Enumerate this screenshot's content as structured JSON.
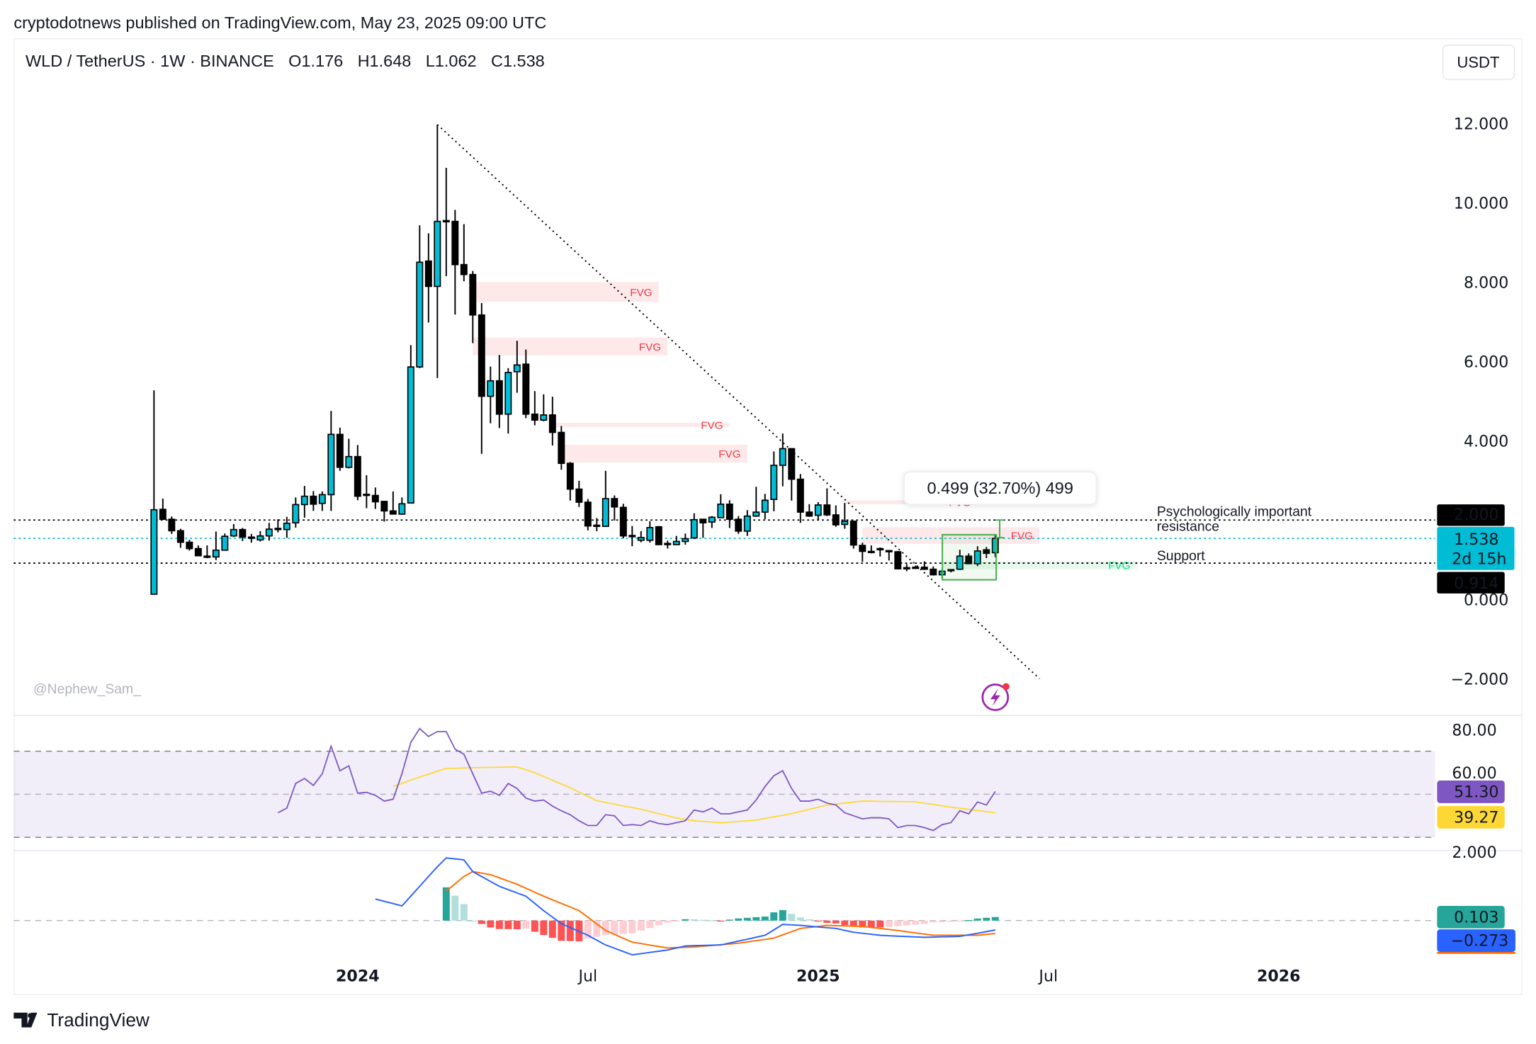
{
  "header": {
    "published": "cryptodotnews published on TradingView.com, May 23, 2025 09:00 UTC",
    "symbol_line": "WLD / TetherUS · 1W · BINANCE",
    "open": "O1.176",
    "high": "H1.648",
    "low": "L1.062",
    "close": "C1.538",
    "currency_button": "USDT"
  },
  "watermark": "@Nephew_Sam_",
  "footer_logo": "TradingView",
  "colors": {
    "bull": "#00bcd4",
    "bear": "#000000",
    "fvg_red": "#f23645",
    "fvg_green": "#00e676",
    "rsi": "#7e57c2",
    "rsi_ma": "#fdd835",
    "macd": "#2962ff",
    "signal": "#ff6d00"
  },
  "annotations": {
    "measure": "0.499 (32.70%) 499",
    "resistance_1": "Psychologically important",
    "resistance_2": "resistance",
    "support": "Support",
    "fvg": "FVG"
  },
  "price_labels": {
    "resistance": "2.000",
    "last": "1.538",
    "countdown": "2d 15h",
    "support": "0.914"
  },
  "indicator_labels": {
    "rsi": "51.30",
    "rsi_ma": "39.27",
    "macd_hist": "0.103",
    "macd": "−0.273"
  },
  "chart_data": [
    {
      "type": "candlestick",
      "title": "WLD / TetherUS · 1W · BINANCE",
      "ylim": [
        -2.6,
        13
      ],
      "y_ticks": [
        "12.000",
        "10.000",
        "8.000",
        "6.000",
        "4.000",
        "0.000",
        "−2.000"
      ],
      "y_tick_values": [
        12,
        10,
        8,
        6,
        4,
        0,
        -2
      ],
      "x_ticks": [
        {
          "label": "2024",
          "week": 23,
          "bold": true
        },
        {
          "label": "Jul",
          "week": 49,
          "bold": false
        },
        {
          "label": "2025",
          "week": 75,
          "bold": true
        },
        {
          "label": "Jul",
          "week": 101,
          "bold": false
        },
        {
          "label": "2026",
          "week": 127,
          "bold": true
        }
      ],
      "first_week": "2023-07-24",
      "ohlc": [
        [
          0.13,
          5.27,
          0.13,
          2.26
        ],
        [
          2.27,
          2.54,
          2.0,
          2.02
        ],
        [
          2.02,
          2.09,
          1.65,
          1.73
        ],
        [
          1.73,
          1.78,
          1.3,
          1.44
        ],
        [
          1.44,
          1.5,
          1.23,
          1.28
        ],
        [
          1.28,
          1.36,
          1.09,
          1.1
        ],
        [
          1.09,
          1.36,
          1.04,
          1.09
        ],
        [
          1.07,
          1.71,
          0.99,
          1.24
        ],
        [
          1.24,
          1.66,
          1.23,
          1.59
        ],
        [
          1.6,
          1.9,
          1.57,
          1.76
        ],
        [
          1.76,
          1.8,
          1.47,
          1.57
        ],
        [
          1.56,
          1.65,
          1.43,
          1.57
        ],
        [
          1.5,
          1.72,
          1.46,
          1.6
        ],
        [
          1.6,
          1.93,
          1.48,
          1.77
        ],
        [
          1.78,
          2.02,
          1.69,
          1.79
        ],
        [
          1.76,
          2.08,
          1.55,
          1.92
        ],
        [
          1.93,
          2.57,
          1.81,
          2.39
        ],
        [
          2.39,
          2.86,
          2.06,
          2.6
        ],
        [
          2.6,
          2.73,
          2.23,
          2.4
        ],
        [
          2.42,
          2.72,
          2.23,
          2.64
        ],
        [
          2.64,
          4.75,
          2.23,
          4.16
        ],
        [
          4.16,
          4.33,
          3.24,
          3.33
        ],
        [
          3.33,
          4.05,
          3.3,
          3.6
        ],
        [
          3.6,
          3.89,
          2.5,
          2.6
        ],
        [
          2.64,
          3.13,
          2.3,
          2.65
        ],
        [
          2.62,
          2.82,
          2.28,
          2.46
        ],
        [
          2.47,
          2.48,
          1.96,
          2.23
        ],
        [
          2.23,
          2.72,
          2.15,
          2.15
        ],
        [
          2.15,
          2.57,
          2.13,
          2.41
        ],
        [
          2.43,
          6.41,
          2.43,
          5.86
        ],
        [
          5.86,
          9.43,
          5.83,
          8.5
        ],
        [
          8.53,
          9.23,
          6.98,
          7.89
        ],
        [
          7.89,
          11.97,
          5.58,
          9.53
        ],
        [
          9.54,
          10.88,
          8.15,
          9.55
        ],
        [
          9.53,
          9.82,
          7.18,
          8.44
        ],
        [
          8.44,
          9.46,
          8.02,
          8.19
        ],
        [
          8.19,
          8.28,
          6.46,
          7.17
        ],
        [
          7.17,
          7.47,
          3.67,
          5.12
        ],
        [
          5.12,
          5.87,
          4.44,
          5.51
        ],
        [
          5.51,
          6.16,
          4.32,
          4.67
        ],
        [
          4.67,
          5.83,
          4.18,
          5.72
        ],
        [
          5.74,
          6.52,
          5.21,
          5.91
        ],
        [
          5.93,
          6.3,
          4.57,
          4.67
        ],
        [
          4.67,
          5.25,
          4.39,
          4.52
        ],
        [
          4.52,
          5.17,
          4.49,
          4.65
        ],
        [
          4.65,
          5.11,
          3.88,
          4.21
        ],
        [
          4.21,
          4.37,
          3.27,
          3.43
        ],
        [
          3.43,
          3.46,
          2.49,
          2.78
        ],
        [
          2.78,
          2.99,
          2.33,
          2.45
        ],
        [
          2.45,
          2.53,
          1.74,
          1.85
        ],
        [
          1.87,
          2.05,
          1.72,
          1.86
        ],
        [
          1.84,
          3.24,
          1.84,
          2.54
        ],
        [
          2.54,
          2.62,
          1.99,
          2.33
        ],
        [
          2.32,
          2.41,
          1.54,
          1.6
        ],
        [
          1.6,
          1.85,
          1.34,
          1.61
        ],
        [
          1.49,
          1.72,
          1.44,
          1.56
        ],
        [
          1.49,
          1.97,
          1.43,
          1.81
        ],
        [
          1.83,
          1.85,
          1.38,
          1.38
        ],
        [
          1.4,
          1.48,
          1.28,
          1.41
        ],
        [
          1.38,
          1.6,
          1.37,
          1.46
        ],
        [
          1.46,
          1.66,
          1.38,
          1.53
        ],
        [
          1.55,
          2.17,
          1.52,
          2.01
        ],
        [
          2.02,
          2.02,
          1.55,
          1.93
        ],
        [
          1.95,
          2.1,
          1.8,
          2.07
        ],
        [
          2.06,
          2.65,
          2.05,
          2.4
        ],
        [
          2.4,
          2.5,
          1.8,
          2.02
        ],
        [
          2.02,
          2.1,
          1.65,
          1.72
        ],
        [
          1.72,
          2.25,
          1.6,
          2.1
        ],
        [
          2.1,
          2.84,
          2.08,
          2.2
        ],
        [
          2.2,
          2.66,
          2.02,
          2.5
        ],
        [
          2.52,
          3.73,
          2.22,
          3.38
        ],
        [
          3.38,
          4.18,
          2.85,
          3.8
        ],
        [
          3.8,
          3.8,
          2.49,
          3.03
        ],
        [
          3.03,
          3.16,
          1.93,
          2.2
        ],
        [
          2.2,
          2.4,
          2.08,
          2.1
        ],
        [
          2.12,
          2.45,
          2.0,
          2.38
        ],
        [
          2.38,
          2.8,
          2.1,
          2.13
        ],
        [
          2.13,
          2.37,
          1.83,
          1.88
        ],
        [
          1.89,
          2.43,
          1.78,
          1.97
        ],
        [
          1.97,
          1.97,
          1.28,
          1.37
        ],
        [
          1.36,
          1.43,
          0.95,
          1.21
        ],
        [
          1.2,
          1.36,
          1.16,
          1.21
        ],
        [
          1.28,
          1.31,
          1.08,
          1.28
        ],
        [
          1.23,
          1.23,
          0.98,
          1.22
        ],
        [
          1.2,
          1.22,
          0.77,
          0.77
        ],
        [
          0.8,
          0.89,
          0.71,
          0.8
        ],
        [
          0.81,
          0.85,
          0.8,
          0.81
        ],
        [
          0.81,
          0.96,
          0.74,
          0.76
        ],
        [
          0.76,
          0.83,
          0.6,
          0.62
        ],
        [
          0.62,
          0.77,
          0.53,
          0.71
        ],
        [
          0.74,
          0.76,
          0.68,
          0.75
        ],
        [
          0.76,
          1.25,
          0.74,
          1.09
        ],
        [
          1.09,
          1.16,
          0.9,
          0.9
        ],
        [
          0.9,
          1.34,
          0.84,
          1.22
        ],
        [
          1.25,
          1.32,
          1.04,
          1.16
        ],
        [
          1.176,
          1.648,
          1.062,
          1.538
        ]
      ],
      "levels": [
        {
          "name": "resistance",
          "value": 2.0
        },
        {
          "name": "last",
          "value": 1.538
        },
        {
          "name": "support",
          "value": 0.914
        }
      ],
      "fvg_zones": [
        {
          "kind": "bearish",
          "from_week": 36,
          "to_week": 57,
          "low": 7.5,
          "high": 8.0
        },
        {
          "kind": "bearish",
          "from_week": 36,
          "to_week": 58,
          "low": 6.15,
          "high": 6.6
        },
        {
          "kind": "bearish",
          "from_week": 45,
          "to_week": 65,
          "low": 4.35,
          "high": 4.45
        },
        {
          "kind": "bearish",
          "from_week": 46,
          "to_week": 67,
          "low": 3.45,
          "high": 3.9
        },
        {
          "kind": "bearish",
          "from_week": 78,
          "to_week": 93,
          "low": 2.4,
          "high": 2.5
        },
        {
          "kind": "bearish",
          "from_week": 80,
          "to_week": 100,
          "low": 1.4,
          "high": 1.82
        },
        {
          "kind": "bullish",
          "from_week": 89,
          "to_week": 111,
          "low": 0.76,
          "high": 0.96
        }
      ],
      "trendline": {
        "from": [
          32,
          11.97
        ],
        "to": [
          100,
          -2.0
        ]
      }
    },
    {
      "type": "line",
      "title": "RSI",
      "ylim": [
        20,
        80
      ],
      "y_ticks": [
        "80.00",
        "60.00"
      ],
      "bands": [
        70,
        50,
        30
      ],
      "rsi_start_week": 14,
      "rsi": [
        41.4,
        43.6,
        55,
        57.3,
        54.1,
        59.5,
        72.3,
        60.9,
        63.2,
        50.5,
        50.9,
        49.5,
        46.8,
        47.7,
        59.5,
        74.1,
        80.5,
        76.8,
        79.1,
        79.1,
        70.9,
        68.6,
        59.5,
        50.5,
        51.4,
        49.5,
        55,
        52.7,
        48.2,
        46.8,
        47.3,
        44.5,
        42.3,
        40.5,
        37.7,
        35.5,
        35.5,
        40.5,
        40,
        35.5,
        35.9,
        35.5,
        37.7,
        36.4,
        35.9,
        36.8,
        37.7,
        42.7,
        41.8,
        43.6,
        40.9,
        40.9,
        41.8,
        42.7,
        47.3,
        53.6,
        58.6,
        60.9,
        52.7,
        46.8,
        46.8,
        47.7,
        45.9,
        45,
        41.4,
        40,
        38.6,
        39.1,
        39.1,
        38.6,
        34.5,
        35.5,
        35.5,
        34.5,
        33.2,
        35.9,
        36.8,
        42.3,
        40.9,
        46.4,
        45,
        51.3
      ],
      "rsi_ma": [
        [
          27,
          53.6
        ],
        [
          30,
          58
        ],
        [
          33,
          62
        ],
        [
          38,
          62.5
        ],
        [
          41,
          62.7
        ],
        [
          43,
          60
        ],
        [
          47,
          53
        ],
        [
          50,
          47
        ],
        [
          55,
          43
        ],
        [
          59,
          39
        ],
        [
          61,
          37.7
        ],
        [
          64,
          36.8
        ],
        [
          68,
          38
        ],
        [
          72,
          41
        ],
        [
          76,
          45
        ],
        [
          80,
          46.8
        ],
        [
          86,
          46.5
        ],
        [
          90,
          44
        ],
        [
          95,
          41.4
        ],
        [
          99,
          39
        ],
        [
          103,
          37.7
        ],
        [
          106,
          37.8
        ],
        [
          110,
          39.3
        ]
      ]
    },
    {
      "type": "line",
      "title": "MACD",
      "ylim": [
        -2.2,
        2.3
      ],
      "y_ticks": [
        "2.000"
      ],
      "macd": [
        [
          25,
          0.63
        ],
        [
          28,
          0.43
        ],
        [
          30,
          1.0
        ],
        [
          32,
          1.57
        ],
        [
          33,
          1.83
        ],
        [
          35,
          1.77
        ],
        [
          36,
          1.43
        ],
        [
          38,
          1.14
        ],
        [
          39,
          1.0
        ],
        [
          42,
          0.71
        ],
        [
          44,
          0.29
        ],
        [
          46,
          -0.09
        ],
        [
          49,
          -0.43
        ],
        [
          51,
          -0.71
        ],
        [
          54,
          -1.0
        ],
        [
          58,
          -0.86
        ],
        [
          60,
          -0.74
        ],
        [
          64,
          -0.71
        ],
        [
          69,
          -0.43
        ],
        [
          71,
          -0.11
        ],
        [
          73,
          -0.14
        ],
        [
          77,
          -0.23
        ],
        [
          79,
          -0.34
        ],
        [
          82,
          -0.43
        ],
        [
          87,
          -0.49
        ],
        [
          91,
          -0.46
        ],
        [
          93,
          -0.37
        ],
        [
          95,
          -0.273
        ]
      ],
      "signal": [
        [
          33,
          0.86
        ],
        [
          35,
          1.29
        ],
        [
          36,
          1.43
        ],
        [
          38,
          1.34
        ],
        [
          41,
          1.06
        ],
        [
          44,
          0.71
        ],
        [
          48,
          0.29
        ],
        [
          51,
          -0.29
        ],
        [
          54,
          -0.63
        ],
        [
          58,
          -0.8
        ],
        [
          61,
          -0.77
        ],
        [
          66,
          -0.66
        ],
        [
          70,
          -0.51
        ],
        [
          73,
          -0.23
        ],
        [
          76,
          -0.14
        ],
        [
          80,
          -0.17
        ],
        [
          84,
          -0.29
        ],
        [
          88,
          -0.43
        ],
        [
          93,
          -0.43
        ],
        [
          95,
          -0.376
        ]
      ]
    }
  ]
}
